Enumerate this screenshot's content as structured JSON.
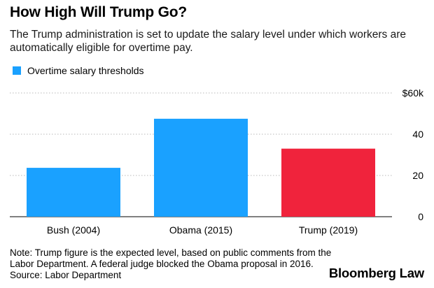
{
  "title": "How High Will Trump Go?",
  "subtitle": "The Trump administration is set to update the salary level under which workers are automatically eligible for overtime pay.",
  "legend": {
    "label": "Overtime salary thresholds",
    "color": "#1aa1ff"
  },
  "note": {
    "lines": [
      "Note: Trump figure is the expected level, based on public comments from the",
      "Labor Department. A federal judge blocked the Obama proposal in 2016.",
      "Source: Labor Department"
    ]
  },
  "brand": "Bloomberg Law",
  "chart_data": {
    "type": "bar",
    "categories": [
      "Bush (2004)",
      "Obama (2015)",
      "Trump (2019)"
    ],
    "values": [
      23.7,
      47.5,
      33.0
    ],
    "colors": [
      "#1aa1ff",
      "#1aa1ff",
      "#f0233c"
    ],
    "ylim": [
      0,
      60
    ],
    "yticks": [
      0,
      20,
      40,
      60
    ],
    "ytick_labels": [
      "0",
      "20",
      "40",
      "$60k"
    ],
    "grid": true,
    "legend_position": "top-left",
    "title": "How High Will Trump Go?",
    "xlabel": "",
    "ylabel": ""
  }
}
